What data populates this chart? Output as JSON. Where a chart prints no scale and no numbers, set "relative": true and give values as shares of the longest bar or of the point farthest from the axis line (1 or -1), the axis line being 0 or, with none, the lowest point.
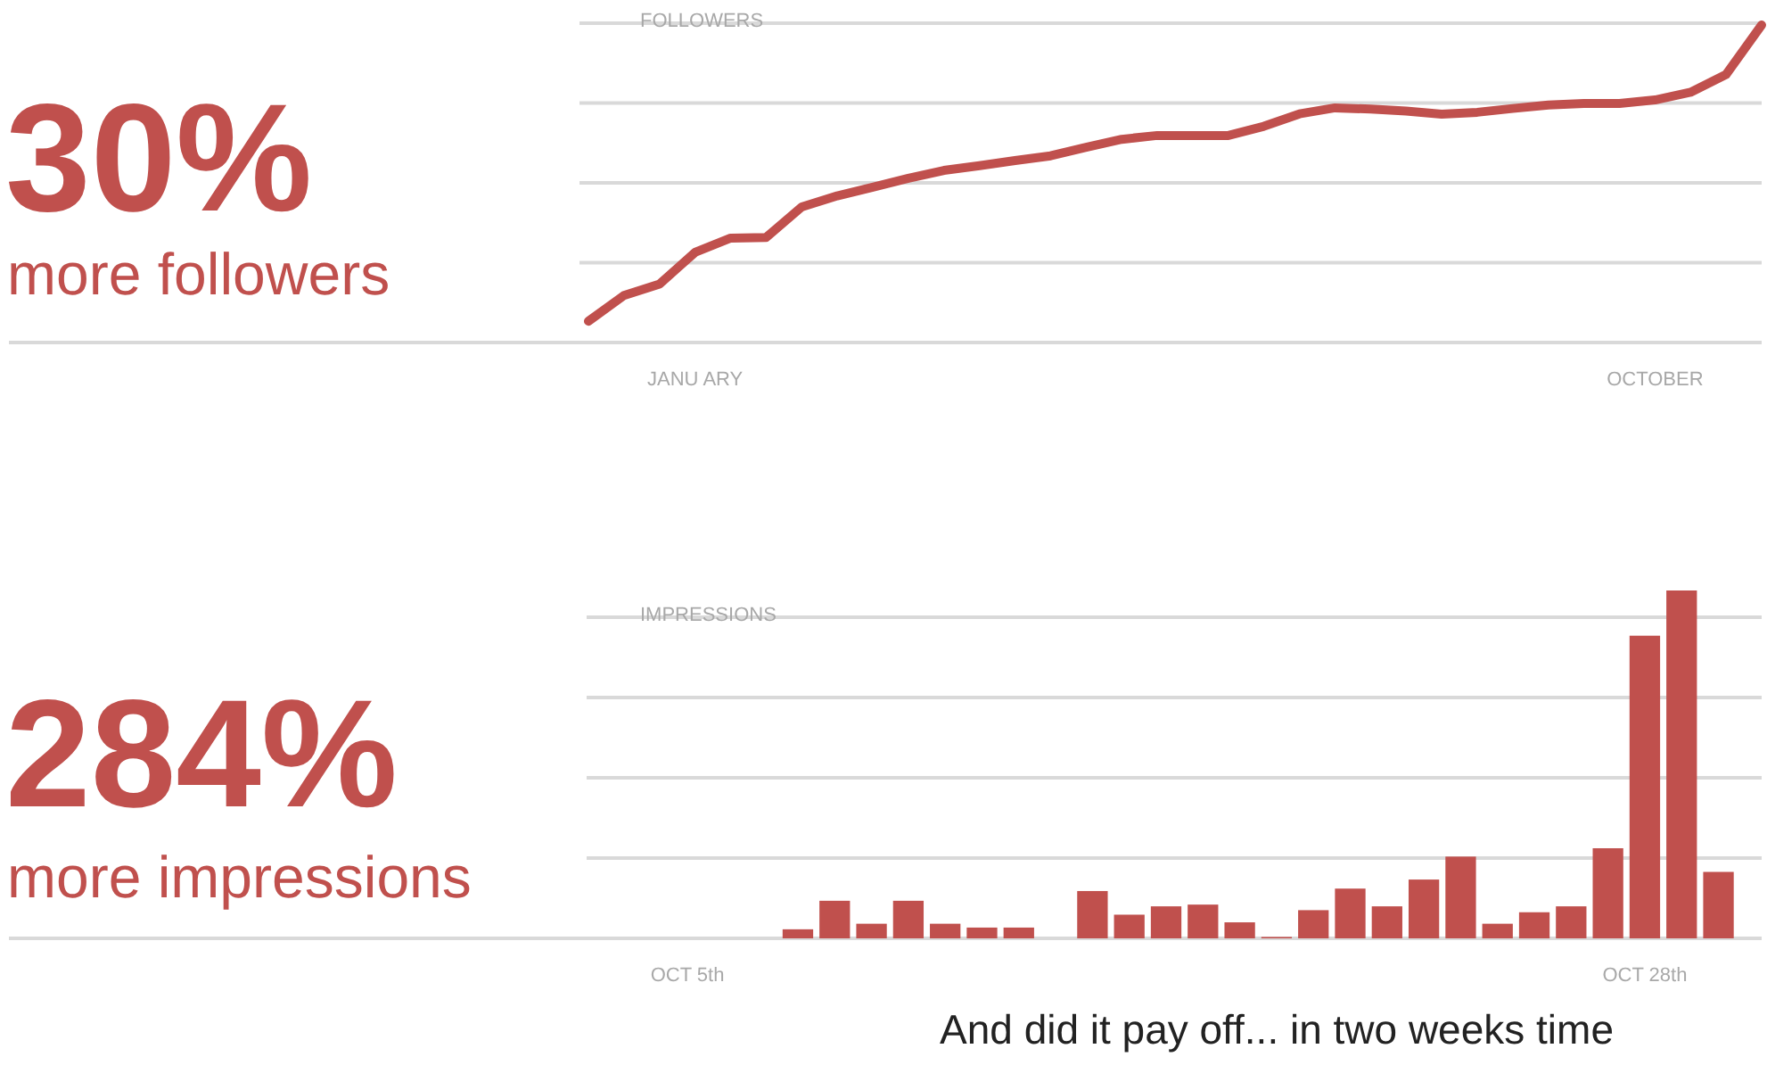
{
  "chart_data": [
    {
      "type": "line",
      "title": "30%",
      "subtitle": "more followers",
      "ylabel": "FOLLOWERS",
      "relative": true,
      "grid": true,
      "color": "#c0504d",
      "categories": [
        null,
        null,
        null,
        "JANU ARY",
        null,
        null,
        null,
        null,
        null,
        null,
        null,
        null,
        null,
        null,
        null,
        null,
        null,
        null,
        null,
        null,
        null,
        null,
        null,
        null,
        null,
        null,
        null,
        null,
        null,
        null,
        "OCTOBER",
        null,
        null,
        null
      ],
      "values": [
        0.067,
        0.148,
        0.184,
        0.284,
        0.329,
        0.331,
        0.427,
        0.462,
        0.489,
        0.517,
        0.542,
        0.557,
        0.573,
        0.588,
        0.615,
        0.64,
        0.652,
        0.652,
        0.652,
        0.681,
        0.72,
        0.739,
        0.735,
        0.729,
        0.719,
        0.725,
        0.737,
        0.748,
        0.753,
        0.753,
        0.764,
        0.788,
        0.844,
        1.0
      ]
    },
    {
      "type": "bar",
      "title": "284%",
      "subtitle": "more impressions",
      "ylabel": "IMPRESSIONS",
      "relative": true,
      "grid": true,
      "color": "#c0504d",
      "categories": [
        null,
        null,
        "OCT 5th",
        null,
        null,
        null,
        null,
        null,
        null,
        null,
        null,
        null,
        null,
        null,
        null,
        null,
        null,
        null,
        null,
        null,
        null,
        null,
        null,
        null,
        null,
        null,
        null,
        null,
        "OCT 28th",
        null,
        null
      ],
      "values": [
        0,
        0,
        0,
        0,
        0,
        0.026,
        0.108,
        0.042,
        0.108,
        0.042,
        0.031,
        0.031,
        0,
        0.136,
        0.068,
        0.092,
        0.097,
        0.046,
        0.004,
        0.081,
        0.143,
        0.092,
        0.169,
        0.235,
        0.042,
        0.075,
        0.092,
        0.259,
        0.87,
        1.0,
        0.191
      ],
      "annotations": [
        "And did it pay off... in two weeks time"
      ]
    }
  ]
}
